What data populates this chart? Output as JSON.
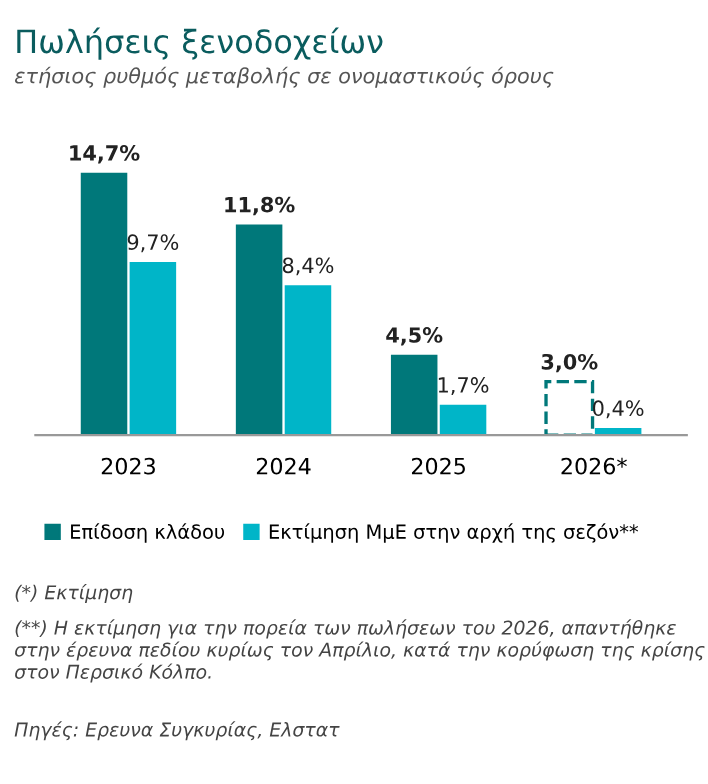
{
  "chart_data": {
    "type": "bar",
    "title": "Πωλήσεις ξενοδοχείων",
    "subtitle": "ετήσιος ρυθμός μεταβολής σε ονομαστικούς όρους",
    "categories": [
      "2023",
      "2024",
      "2025",
      "2026*"
    ],
    "series": [
      {
        "name": "Επίδοση κλάδου",
        "color": "#00787a",
        "colors": [
          "#00787a",
          "#00787a",
          "#00787a",
          "#ffffff"
        ],
        "values": [
          14.7,
          11.8,
          4.5,
          3.0
        ],
        "value_labels": [
          "14,7%",
          "11,8%",
          "4,5%",
          "3,0%"
        ]
      },
      {
        "name": "Εκτίμηση ΜμΕ στην αρχή της σεζόν**",
        "color": "#00b5c8",
        "values": [
          9.7,
          8.4,
          1.7,
          0.4
        ],
        "value_labels": [
          "9,7%",
          "8,4%",
          "1,7%",
          "0,4%"
        ]
      }
    ],
    "legend": "bottom left",
    "annotations": [
      "(*) Εκτίμηση",
      "(**) Η εκτίμηση για την πορεία των πωλήσεων του 2026, απαντήθηκε στην έρευνα πεδίου κυρίως τον Απρίλιο, κατά την κορύφωση της κρίσης στον Περσικό Κόλπο.",
      "Πηγές: Ερευνα Συγκυρίας, Ελστατ"
    ]
  }
}
